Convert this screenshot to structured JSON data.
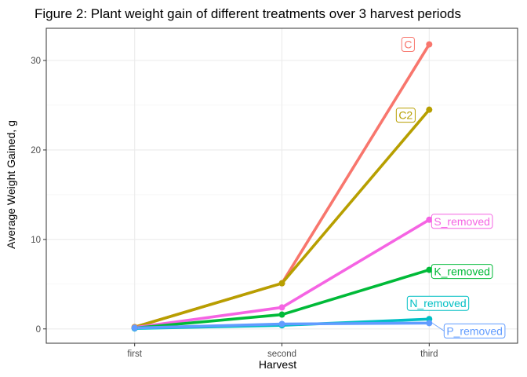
{
  "chart_data": {
    "type": "line",
    "title": "Figure 2: Plant weight gain of different treatments over 3 harvest periods",
    "xlabel": "Harvest",
    "ylabel": "Average Weight Gained, g",
    "categories": [
      "first",
      "second",
      "third"
    ],
    "ylim": [
      -1.6,
      33.6
    ],
    "yticks": [
      0,
      10,
      20,
      30
    ],
    "grid": true,
    "legend": "none (direct labels at line ends)",
    "series": [
      {
        "name": "C",
        "values": [
          0.2,
          5.1,
          31.8
        ],
        "color": "#F8766D"
      },
      {
        "name": "C2",
        "values": [
          0.2,
          5.1,
          24.5
        ],
        "color": "#B79F00"
      },
      {
        "name": "S_removed",
        "values": [
          0.15,
          2.4,
          12.2
        ],
        "color": "#F564E3"
      },
      {
        "name": "K_removed",
        "values": [
          0.1,
          1.6,
          6.6
        ],
        "color": "#00BA38"
      },
      {
        "name": "N_removed",
        "values": [
          0.05,
          0.4,
          1.1
        ],
        "color": "#00BFC4"
      },
      {
        "name": "P_removed",
        "values": [
          0.1,
          0.55,
          0.65
        ],
        "color": "#619CFF"
      }
    ]
  }
}
